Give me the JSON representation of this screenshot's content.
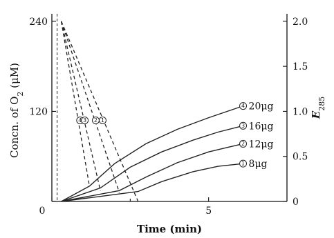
{
  "chart_data": {
    "type": "line",
    "xlabel": "Time (min)",
    "ylabel_left": "Concn. of O",
    "ylabel_left_sub": "2",
    "ylabel_left_unit": "(μM)",
    "ylabel_right": "E",
    "ylabel_right_sub": "285",
    "xlim": [
      0,
      7.5
    ],
    "ylim_left": [
      0,
      250
    ],
    "ylim_right": [
      0,
      2.083
    ],
    "x_ticks": [
      0,
      5
    ],
    "x_tick_labels": [
      "0",
      "5"
    ],
    "y_left_ticks": [
      0,
      120,
      240
    ],
    "y_left_tick_labels": [
      "",
      "120",
      "240"
    ],
    "y_right_ticks": [
      0,
      0.5,
      1.0,
      1.5,
      2.0
    ],
    "y_right_tick_labels": [
      "0",
      "0.5",
      "1.0",
      "1.5",
      "2.0"
    ],
    "oxygen_series": [
      {
        "marker": "4",
        "points": [
          [
            0.3,
            240
          ],
          [
            1.2,
            20
          ]
        ]
      },
      {
        "marker": "3",
        "points": [
          [
            0.3,
            240
          ],
          [
            1.55,
            14
          ]
        ]
      },
      {
        "marker": "2",
        "points": [
          [
            0.3,
            240
          ],
          [
            2.15,
            12
          ]
        ]
      },
      {
        "marker": "1",
        "points": [
          [
            0.3,
            240
          ],
          [
            2.75,
            0
          ]
        ]
      }
    ],
    "oxygen_markers": [
      {
        "marker": "4",
        "x": 0.9,
        "y": 108
      },
      {
        "marker": "3",
        "x": 1.05,
        "y": 108
      },
      {
        "marker": "2",
        "x": 1.4,
        "y": 108
      },
      {
        "marker": "1",
        "x": 1.62,
        "y": 108
      }
    ],
    "absorbance_series": [
      {
        "name": "20μg",
        "marker": "4",
        "points": [
          [
            0.3,
            0.0
          ],
          [
            1.2,
            0.17
          ],
          [
            2.0,
            0.42
          ],
          [
            3.0,
            0.64
          ],
          [
            4.0,
            0.8
          ],
          [
            5.0,
            0.93
          ],
          [
            6.1,
            1.06
          ]
        ]
      },
      {
        "name": "16μg",
        "marker": "3",
        "points": [
          [
            0.3,
            0.0
          ],
          [
            1.55,
            0.15
          ],
          [
            2.5,
            0.38
          ],
          [
            3.5,
            0.55
          ],
          [
            4.5,
            0.68
          ],
          [
            5.3,
            0.77
          ],
          [
            6.1,
            0.84
          ]
        ]
      },
      {
        "name": "12μg",
        "marker": "2",
        "points": [
          [
            0.3,
            0.0
          ],
          [
            2.15,
            0.12
          ],
          [
            3.0,
            0.27
          ],
          [
            4.0,
            0.43
          ],
          [
            5.0,
            0.55
          ],
          [
            5.6,
            0.6
          ],
          [
            6.1,
            0.64
          ]
        ]
      },
      {
        "name": "8μg",
        "marker": "1",
        "points": [
          [
            0.3,
            0.0
          ],
          [
            2.75,
            0.11
          ],
          [
            3.5,
            0.22
          ],
          [
            4.5,
            0.33
          ],
          [
            5.3,
            0.39
          ],
          [
            6.1,
            0.42
          ]
        ]
      }
    ]
  }
}
